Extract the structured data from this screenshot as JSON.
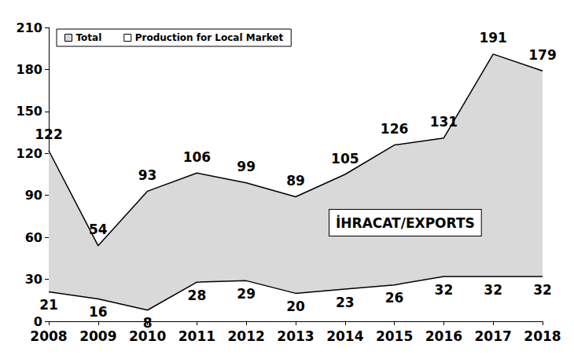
{
  "chart_data": {
    "type": "area",
    "categories": [
      "2008",
      "2009",
      "2010",
      "2011",
      "2012",
      "2013",
      "2014",
      "2015",
      "2016",
      "2017",
      "2018"
    ],
    "series": [
      {
        "name": "Total",
        "color": "#d9d9d9",
        "values": [
          122,
          54,
          93,
          106,
          99,
          89,
          105,
          126,
          131,
          191,
          179
        ]
      },
      {
        "name": "Production for Local Market",
        "color": "#ffffff",
        "values": [
          21,
          16,
          8,
          28,
          29,
          20,
          23,
          26,
          32,
          32,
          32
        ]
      }
    ],
    "annotations": [
      "İHRACAT/EXPORTS"
    ],
    "ylim": [
      0,
      210
    ],
    "yticks": [
      0,
      30,
      60,
      90,
      120,
      150,
      180,
      210
    ],
    "grid": false,
    "legend": "top-left",
    "data_labels": true
  }
}
